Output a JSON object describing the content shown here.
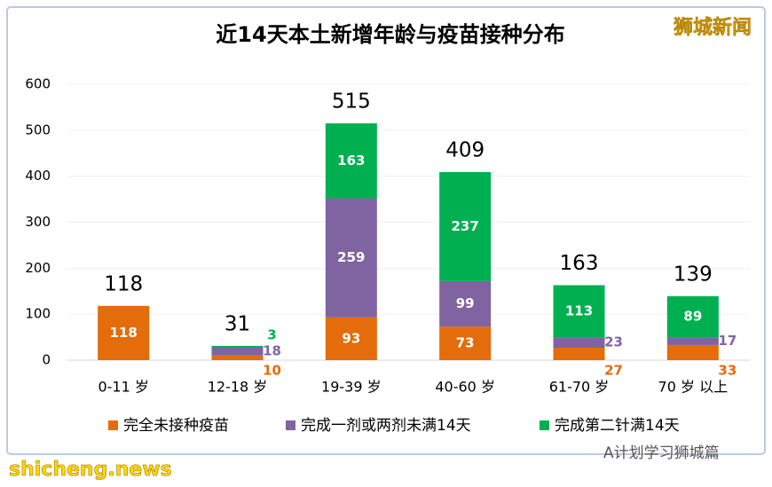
{
  "chart_data": {
    "type": "stacked_bar",
    "title": "近14天本土新增年龄与疫苗接种分布",
    "categories": [
      "0-11 岁",
      "12-18 岁",
      "19-39 岁",
      "40-60 岁",
      "61-70 岁",
      "70 岁 以上"
    ],
    "series": [
      {
        "name": "完全未接种疫苗",
        "color": "#e46c0a",
        "values": [
          118,
          10,
          93,
          73,
          27,
          33
        ]
      },
      {
        "name": "完成一剂或两剂未满14天",
        "color": "#8064a2",
        "values": [
          null,
          18,
          259,
          99,
          23,
          17
        ]
      },
      {
        "name": "完成第二针满14天",
        "color": "#00b050",
        "values": [
          null,
          3,
          163,
          237,
          113,
          89
        ]
      }
    ],
    "totals": [
      118,
      31,
      515,
      409,
      163,
      139
    ],
    "ylim": [
      0,
      600
    ],
    "yticks": [
      0,
      100,
      200,
      300,
      400,
      500,
      600
    ],
    "grid": true,
    "watermarks": [
      "狮城新闻",
      "shicheng.news",
      "A计划学习狮城篇"
    ]
  }
}
